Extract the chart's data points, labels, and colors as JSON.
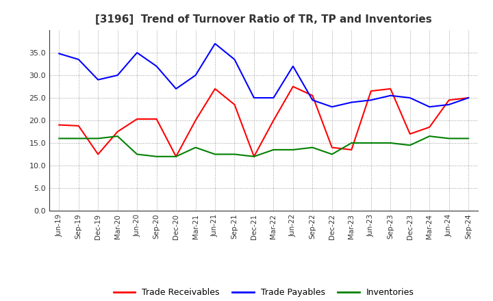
{
  "title": "[3196]  Trend of Turnover Ratio of TR, TP and Inventories",
  "x_labels": [
    "Jun-19",
    "Sep-19",
    "Dec-19",
    "Mar-20",
    "Jun-20",
    "Sep-20",
    "Dec-20",
    "Mar-21",
    "Jun-21",
    "Sep-21",
    "Dec-21",
    "Mar-22",
    "Jun-22",
    "Sep-22",
    "Dec-22",
    "Mar-23",
    "Jun-23",
    "Sep-23",
    "Dec-23",
    "Mar-24",
    "Jun-24",
    "Sep-24"
  ],
  "trade_receivables": [
    19.0,
    18.8,
    12.5,
    17.5,
    20.3,
    20.3,
    12.0,
    20.0,
    27.0,
    23.5,
    12.0,
    20.0,
    27.5,
    25.5,
    14.0,
    13.5,
    26.5,
    27.0,
    17.0,
    18.5,
    24.5,
    25.0
  ],
  "trade_payables": [
    34.8,
    33.5,
    29.0,
    30.0,
    35.0,
    32.0,
    27.0,
    30.0,
    37.0,
    33.5,
    25.0,
    25.0,
    32.0,
    24.5,
    23.0,
    24.0,
    24.5,
    25.5,
    25.0,
    23.0,
    23.5,
    25.0
  ],
  "inventories": [
    16.0,
    16.0,
    16.0,
    16.5,
    12.5,
    12.0,
    12.0,
    14.0,
    12.5,
    12.5,
    12.0,
    13.5,
    13.5,
    14.0,
    12.5,
    15.0,
    15.0,
    15.0,
    14.5,
    16.5,
    16.0,
    16.0
  ],
  "ylim": [
    0,
    40
  ],
  "yticks": [
    0.0,
    5.0,
    10.0,
    15.0,
    20.0,
    25.0,
    30.0,
    35.0
  ],
  "color_tr": "#ff0000",
  "color_tp": "#0000ff",
  "color_inv": "#008000",
  "legend_tr": "Trade Receivables",
  "legend_tp": "Trade Payables",
  "legend_inv": "Inventories",
  "bg_color": "#ffffff",
  "grid_color": "#555555",
  "title_color": "#333333"
}
